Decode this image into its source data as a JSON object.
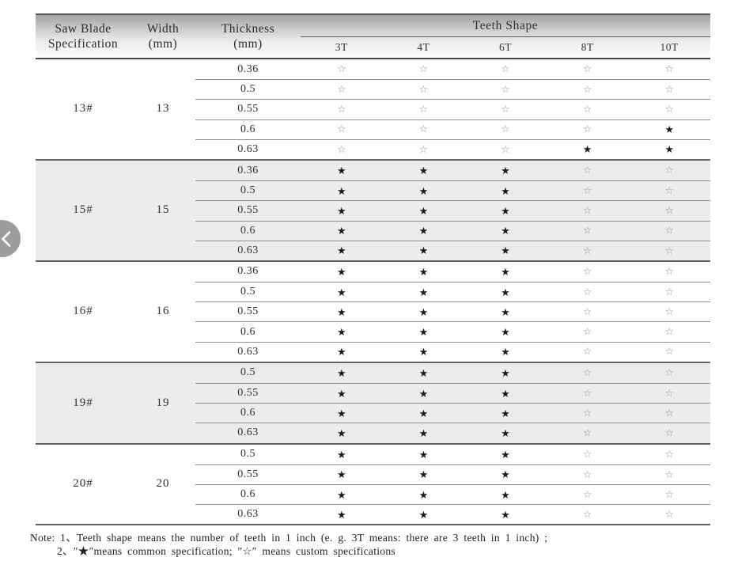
{
  "colors": {
    "header_gradient_top": "#a2a2a2",
    "header_border": "#454545",
    "section_line": "#626262",
    "row_line": "#8f8f8f",
    "shaded_section_bg": "#ececec",
    "star_filled": "#1a1a1a",
    "star_hollow": "#8d8d8d",
    "nav_circle": "#9c9c9c",
    "text": "#2f2f2f"
  },
  "nav": {
    "prev_icon": "chevron-left"
  },
  "legend": {
    "common_symbol": "★",
    "custom_symbol": "☆"
  },
  "table": {
    "header": {
      "spec_line1": "Saw Blade",
      "spec_line2": "Specification",
      "width_line1": "Width",
      "width_line2": "(mm)",
      "thickness_line1": "Thickness",
      "thickness_line2": "(mm)",
      "teeth_shape": "Teeth Shape",
      "teeth_cols": [
        "3T",
        "4T",
        "6T",
        "8T",
        "10T"
      ]
    },
    "sections": [
      {
        "spec": "13#",
        "width": "13",
        "shaded": false,
        "rows": [
          {
            "thickness": "0.36",
            "teeth": [
              "☆",
              "☆",
              "☆",
              "☆",
              "☆"
            ]
          },
          {
            "thickness": "0.5",
            "teeth": [
              "☆",
              "☆",
              "☆",
              "☆",
              "☆"
            ]
          },
          {
            "thickness": "0.55",
            "teeth": [
              "☆",
              "☆",
              "☆",
              "☆",
              "☆"
            ]
          },
          {
            "thickness": "0.6",
            "teeth": [
              "☆",
              "☆",
              "☆",
              "☆",
              "★"
            ]
          },
          {
            "thickness": "0.63",
            "teeth": [
              "☆",
              "☆",
              "☆",
              "★",
              "★"
            ]
          }
        ]
      },
      {
        "spec": "15#",
        "width": "15",
        "shaded": true,
        "rows": [
          {
            "thickness": "0.36",
            "teeth": [
              "★",
              "★",
              "★",
              "☆",
              "☆"
            ]
          },
          {
            "thickness": "0.5",
            "teeth": [
              "★",
              "★",
              "★",
              "☆",
              "☆"
            ]
          },
          {
            "thickness": "0.55",
            "teeth": [
              "★",
              "★",
              "★",
              "☆",
              "☆"
            ]
          },
          {
            "thickness": "0.6",
            "teeth": [
              "★",
              "★",
              "★",
              "☆",
              "☆"
            ]
          },
          {
            "thickness": "0.63",
            "teeth": [
              "★",
              "★",
              "★",
              "☆",
              "☆"
            ]
          }
        ]
      },
      {
        "spec": "16#",
        "width": "16",
        "shaded": false,
        "rows": [
          {
            "thickness": "0.36",
            "teeth": [
              "★",
              "★",
              "★",
              "☆",
              "☆"
            ]
          },
          {
            "thickness": "0.5",
            "teeth": [
              "★",
              "★",
              "★",
              "☆",
              "☆"
            ]
          },
          {
            "thickness": "0.55",
            "teeth": [
              "★",
              "★",
              "★",
              "☆",
              "☆"
            ]
          },
          {
            "thickness": "0.6",
            "teeth": [
              "★",
              "★",
              "★",
              "☆",
              "☆"
            ]
          },
          {
            "thickness": "0.63",
            "teeth": [
              "★",
              "★",
              "★",
              "☆",
              "☆"
            ]
          }
        ]
      },
      {
        "spec": "19#",
        "width": "19",
        "shaded": true,
        "rows": [
          {
            "thickness": "0.5",
            "teeth": [
              "★",
              "★",
              "★",
              "☆",
              "☆"
            ]
          },
          {
            "thickness": "0.55",
            "teeth": [
              "★",
              "★",
              "★",
              "☆",
              "☆"
            ]
          },
          {
            "thickness": "0.6",
            "teeth": [
              "★",
              "★",
              "★",
              "☆",
              "☆"
            ]
          },
          {
            "thickness": "0.63",
            "teeth": [
              "★",
              "★",
              "★",
              "☆",
              "☆"
            ]
          }
        ]
      },
      {
        "spec": "20#",
        "width": "20",
        "shaded": false,
        "rows": [
          {
            "thickness": "0.5",
            "teeth": [
              "★",
              "★",
              "★",
              "☆",
              "☆"
            ]
          },
          {
            "thickness": "0.55",
            "teeth": [
              "★",
              "★",
              "★",
              "☆",
              "☆"
            ]
          },
          {
            "thickness": "0.6",
            "teeth": [
              "★",
              "★",
              "★",
              "☆",
              "☆"
            ]
          },
          {
            "thickness": "0.63",
            "teeth": [
              "★",
              "★",
              "★",
              "☆",
              "☆"
            ]
          }
        ]
      }
    ]
  },
  "note": {
    "line1": "Note: 1、Teeth shape means the number of teeth in 1 inch (e. g.  3T   means:  there are 3 teeth in 1 inch) ;",
    "line2": "2、″★″means common specification;  ″☆″ means custom specifications"
  }
}
